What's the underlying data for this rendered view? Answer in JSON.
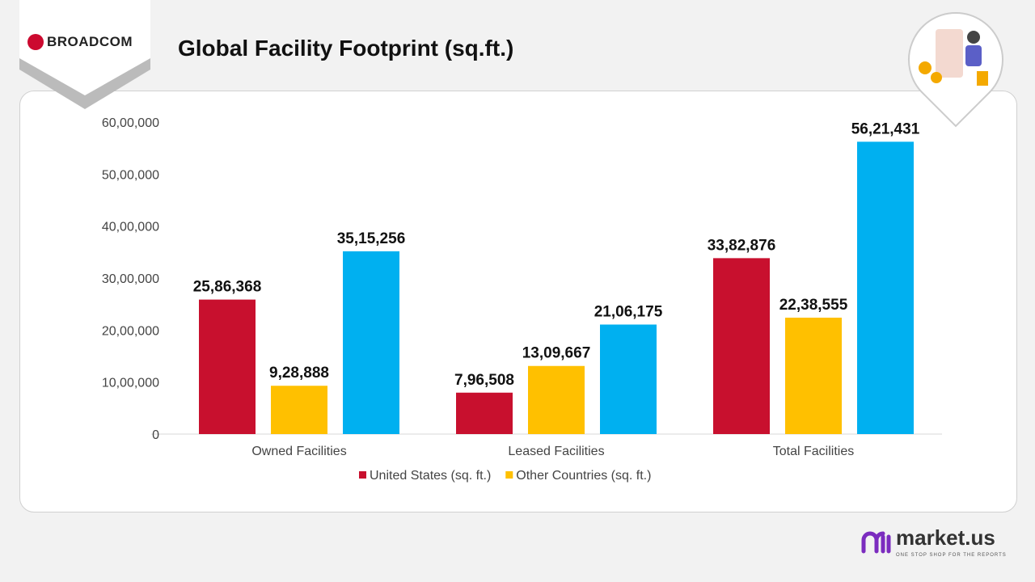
{
  "header": {
    "title": "Global Facility Footprint (sq.ft.)",
    "logo_text": "BROADCOM"
  },
  "footer": {
    "brand": "market.us",
    "tagline": "ONE STOP SHOP FOR THE REPORTS"
  },
  "chart_data": {
    "type": "bar",
    "title": "",
    "categories": [
      "Owned Facilities",
      "Leased Facilities",
      "Total Facilities"
    ],
    "series": [
      {
        "name": "United States (sq. ft.)",
        "color": "#c8102e",
        "values": [
          2586368,
          796508,
          3382876
        ],
        "labels": [
          "25,86,368",
          "7,96,508",
          "33,82,876"
        ]
      },
      {
        "name": "Other Countries (sq. ft.)",
        "color": "#ffc000",
        "values": [
          928888,
          1309667,
          2238555
        ],
        "labels": [
          "9,28,888",
          "13,09,667",
          "22,38,555"
        ]
      },
      {
        "color": "#00b0f0",
        "values": [
          3515256,
          2106175,
          5621431
        ],
        "labels": [
          "35,15,256",
          "21,06,175",
          "56,21,431"
        ]
      }
    ],
    "yticks": [
      "0",
      "10,00,000",
      "20,00,000",
      "30,00,000",
      "40,00,000",
      "50,00,000",
      "60,00,000"
    ],
    "ylim": [
      0,
      6000000
    ],
    "grid": false,
    "legend": "bottom"
  }
}
